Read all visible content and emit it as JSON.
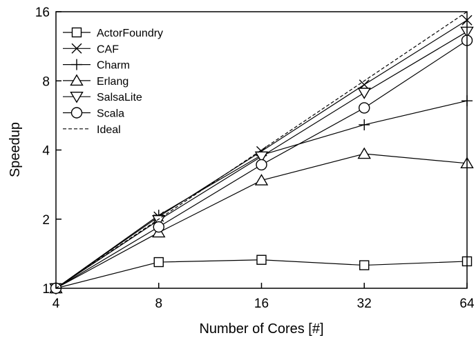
{
  "chart_data": {
    "type": "line",
    "xlabel": "Number of Cores [#]",
    "ylabel": "Speedup",
    "x": [
      4,
      8,
      16,
      32,
      64
    ],
    "x_ticks": [
      "4",
      "8",
      "16",
      "32",
      "64"
    ],
    "y_ticks": [
      "1",
      "2",
      "4",
      "8",
      "16"
    ],
    "x_scale": "log2",
    "y_scale": "log2",
    "xlim": [
      4,
      64
    ],
    "ylim": [
      1,
      16
    ],
    "grid": false,
    "legend_position": "top-left",
    "series": [
      {
        "name": "ActorFoundry",
        "marker": "square",
        "dash": "solid",
        "values": [
          1,
          1.3,
          1.33,
          1.26,
          1.31
        ]
      },
      {
        "name": "CAF",
        "marker": "x",
        "dash": "solid",
        "values": [
          1,
          2.05,
          3.95,
          7.7,
          14.7
        ]
      },
      {
        "name": "Charm",
        "marker": "plus",
        "dash": "solid",
        "values": [
          1,
          2.08,
          3.8,
          5.15,
          6.55
        ]
      },
      {
        "name": "Erlang",
        "marker": "triangle-up",
        "dash": "solid",
        "values": [
          1,
          1.75,
          2.95,
          3.85,
          3.5
        ]
      },
      {
        "name": "SalsaLite",
        "marker": "triangle-down",
        "dash": "solid",
        "values": [
          1,
          1.98,
          3.75,
          7.1,
          13.1
        ]
      },
      {
        "name": "Scala",
        "marker": "circle",
        "dash": "solid",
        "values": [
          1,
          1.85,
          3.45,
          6.1,
          12.0
        ]
      },
      {
        "name": "Ideal",
        "marker": "none",
        "dash": "dashed",
        "values": [
          1,
          2,
          4,
          8,
          16
        ]
      }
    ]
  }
}
